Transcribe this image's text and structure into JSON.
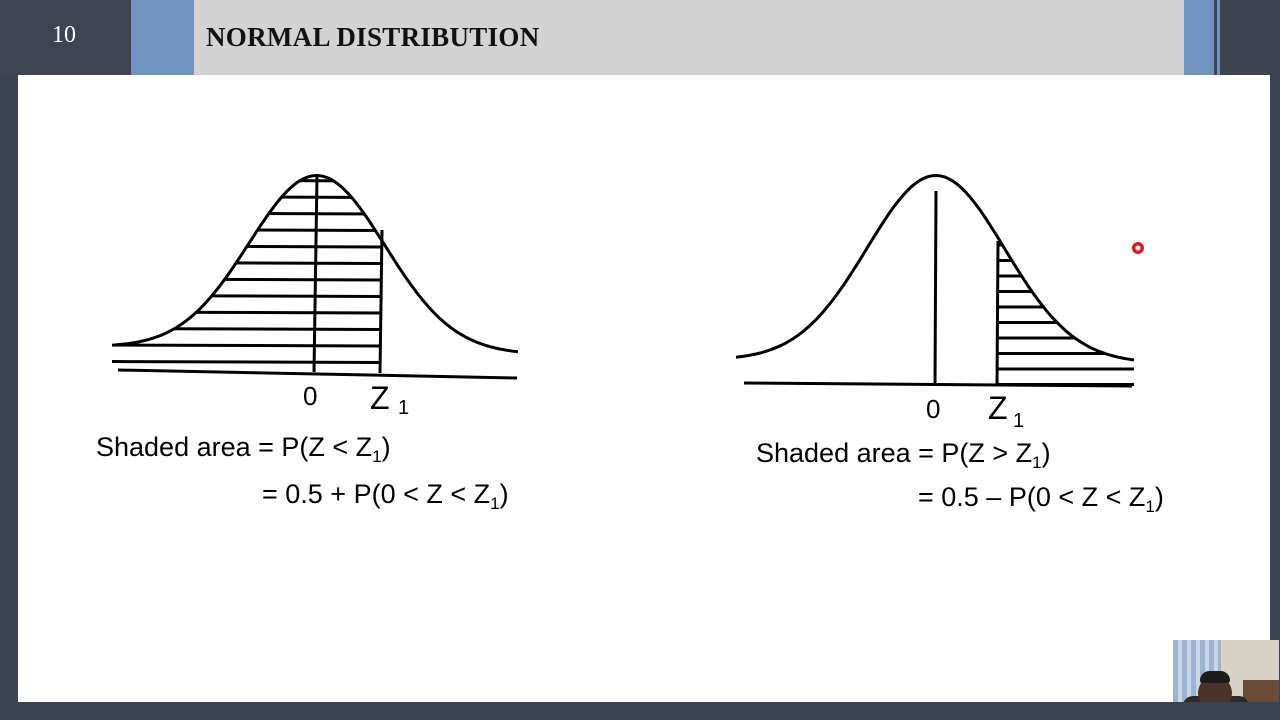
{
  "slide": {
    "number": "10",
    "title": "NORMAL DISTRIBUTION"
  },
  "diagrams": [
    {
      "label_zero": "0",
      "label_z": "Z",
      "label_sub": "1",
      "shaded_side": "left",
      "formula_line1": "Shaded area = P(Z < Z",
      "formula_line1_sub": "1",
      "formula_line1_end": ")",
      "formula_line2": "= 0.5 + P(0 < Z < Z",
      "formula_line2_sub": "1",
      "formula_line2_end": ")"
    },
    {
      "label_zero": "0",
      "label_z": "Z",
      "label_sub": "1",
      "shaded_side": "right",
      "formula_line1": "Shaded area = P(Z > Z",
      "formula_line1_sub": "1",
      "formula_line1_end": ")",
      "formula_line2": "= 0.5 – P(0 < Z < Z",
      "formula_line2_sub": "1",
      "formula_line2_end": ")"
    }
  ],
  "colors": {
    "frame": "#3b4250",
    "accent": "#7094bf",
    "title_band": "#d3d3d3",
    "laser_pointer": "#e21818"
  }
}
